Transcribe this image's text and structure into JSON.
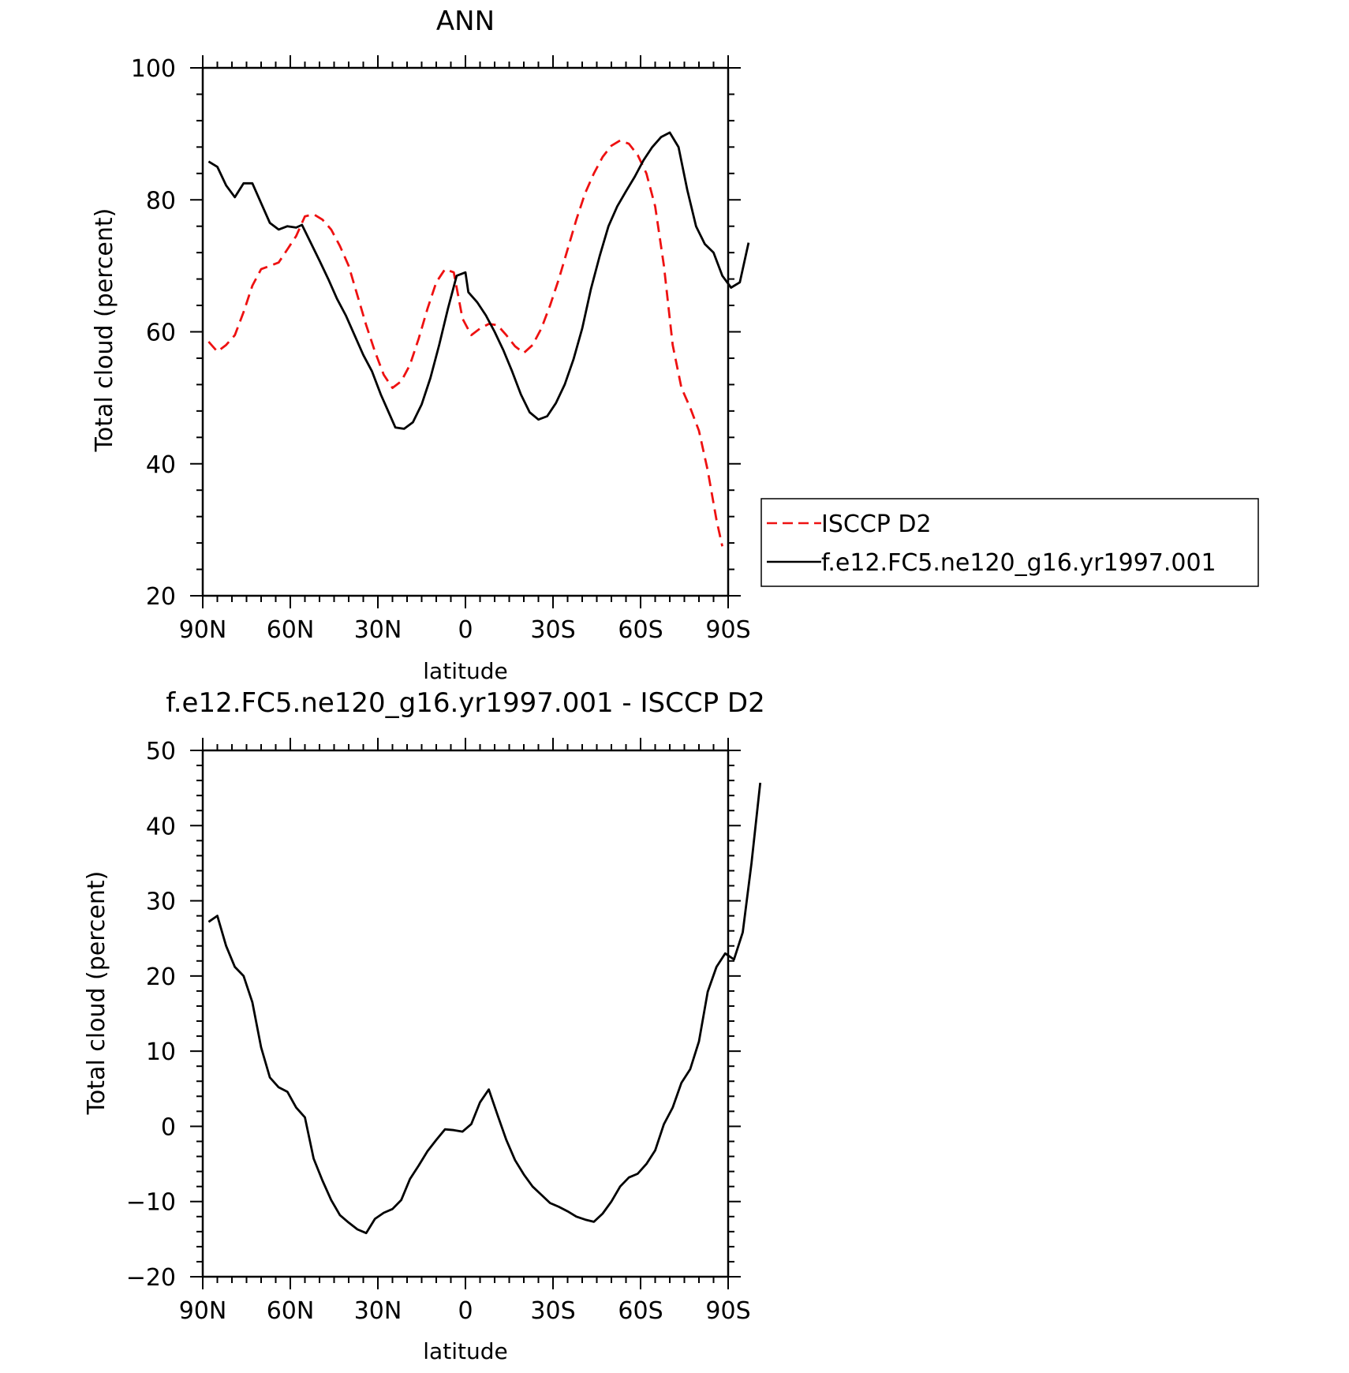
{
  "chart_data": [
    {
      "type": "line",
      "title": "ANN",
      "xlabel": "latitude",
      "ylabel": "Total cloud (percent)",
      "xlim": [
        90,
        -90
      ],
      "ylim": [
        20,
        100
      ],
      "x_ticks": [
        {
          "value": 90,
          "label": "90N"
        },
        {
          "value": 60,
          "label": "60N"
        },
        {
          "value": 30,
          "label": "30N"
        },
        {
          "value": 0,
          "label": "0"
        },
        {
          "value": -30,
          "label": "30S"
        },
        {
          "value": -60,
          "label": "60S"
        },
        {
          "value": -90,
          "label": "90S"
        }
      ],
      "y_ticks": [
        20,
        40,
        60,
        80,
        100
      ],
      "legend": "right",
      "series": [
        {
          "name": "ISCCP D2",
          "color": "#ee1111",
          "dash": "dashed",
          "points": [
            [
              88,
              58.5
            ],
            [
              85,
              57
            ],
            [
              82,
              58
            ],
            [
              79,
              59.5
            ],
            [
              76,
              63
            ],
            [
              73,
              67
            ],
            [
              70,
              69.5
            ],
            [
              67,
              70
            ],
            [
              64,
              70.5
            ],
            [
              61,
              72.5
            ],
            [
              58,
              74.5
            ],
            [
              55,
              77.5
            ],
            [
              52,
              77.8
            ],
            [
              49,
              77
            ],
            [
              46,
              75.5
            ],
            [
              43,
              73
            ],
            [
              40,
              70
            ],
            [
              37,
              65.5
            ],
            [
              34,
              61
            ],
            [
              31,
              57
            ],
            [
              28,
              53.5
            ],
            [
              25,
              51.5
            ],
            [
              22,
              52.5
            ],
            [
              19,
              55
            ],
            [
              16,
              59
            ],
            [
              13,
              63.5
            ],
            [
              10,
              67.5
            ],
            [
              7,
              69.5
            ],
            [
              4,
              69
            ],
            [
              1,
              62
            ],
            [
              -2,
              59.5
            ],
            [
              -5,
              60.5
            ],
            [
              -8,
              61.2
            ],
            [
              -11,
              61
            ],
            [
              -14,
              59.5
            ],
            [
              -17,
              57.8
            ],
            [
              -20,
              56.8
            ],
            [
              -23,
              58
            ],
            [
              -26,
              60.5
            ],
            [
              -29,
              64
            ],
            [
              -32,
              68
            ],
            [
              -35,
              72.5
            ],
            [
              -38,
              77
            ],
            [
              -41,
              81
            ],
            [
              -44,
              84
            ],
            [
              -47,
              86.5
            ],
            [
              -50,
              88.2
            ],
            [
              -53,
              89
            ],
            [
              -56,
              88.5
            ],
            [
              -59,
              86.8
            ],
            [
              -62,
              84
            ],
            [
              -65,
              79
            ],
            [
              -68,
              70
            ],
            [
              -71,
              58
            ],
            [
              -74,
              51.5
            ],
            [
              -77,
              48.5
            ],
            [
              -80,
              45
            ],
            [
              -83,
              39
            ],
            [
              -86,
              31.5
            ],
            [
              -88,
              27.5
            ]
          ]
        },
        {
          "name": "f.e12.FC5.ne120_g16.yr1997.001",
          "color": "#000000",
          "dash": "solid",
          "points": [
            [
              88,
              85.8
            ],
            [
              85,
              85
            ],
            [
              82,
              82.2
            ],
            [
              79,
              80.4
            ],
            [
              76,
              82.5
            ],
            [
              73,
              82.5
            ],
            [
              70,
              79.5
            ],
            [
              67,
              76.5
            ],
            [
              64,
              75.5
            ],
            [
              61,
              76
            ],
            [
              58,
              75.8
            ],
            [
              56,
              76.2
            ],
            [
              53,
              73.5
            ],
            [
              50,
              70.8
            ],
            [
              47,
              68
            ],
            [
              44,
              65
            ],
            [
              41,
              62.5
            ],
            [
              38,
              59.5
            ],
            [
              35,
              56.5
            ],
            [
              32,
              54
            ],
            [
              29,
              50.5
            ],
            [
              26,
              47.5
            ],
            [
              24,
              45.5
            ],
            [
              21,
              45.3
            ],
            [
              18,
              46.3
            ],
            [
              15,
              49
            ],
            [
              12,
              53
            ],
            [
              9,
              58
            ],
            [
              6,
              63.5
            ],
            [
              3,
              68.5
            ],
            [
              0,
              69
            ],
            [
              -1,
              66
            ],
            [
              -4,
              64.5
            ],
            [
              -7,
              62.5
            ],
            [
              -10,
              60
            ],
            [
              -13,
              57.2
            ],
            [
              -16,
              54
            ],
            [
              -19,
              50.5
            ],
            [
              -22,
              47.8
            ],
            [
              -25,
              46.7
            ],
            [
              -28,
              47.2
            ],
            [
              -31,
              49.2
            ],
            [
              -34,
              52
            ],
            [
              -37,
              55.8
            ],
            [
              -40,
              60.5
            ],
            [
              -43,
              66.5
            ],
            [
              -46,
              71.5
            ],
            [
              -49,
              76
            ],
            [
              -52,
              79
            ],
            [
              -55,
              81.3
            ],
            [
              -58,
              83.5
            ],
            [
              -61,
              86
            ],
            [
              -64,
              88
            ],
            [
              -67,
              89.5
            ],
            [
              -70,
              90.2
            ],
            [
              -73,
              88
            ],
            [
              -76,
              81.5
            ],
            [
              -79,
              76
            ],
            [
              -82,
              73.3
            ],
            [
              -85,
              72
            ],
            [
              -88,
              68.5
            ],
            [
              -91,
              66.7
            ],
            [
              -94,
              67.5
            ],
            [
              -97,
              73.5
            ]
          ]
        }
      ]
    },
    {
      "type": "line",
      "title": "f.e12.FC5.ne120_g16.yr1997.001 - ISCCP D2",
      "xlabel": "latitude",
      "ylabel": "Total cloud (percent)",
      "xlim": [
        90,
        -90
      ],
      "ylim": [
        -20,
        50
      ],
      "x_ticks": [
        {
          "value": 90,
          "label": "90N"
        },
        {
          "value": 60,
          "label": "60N"
        },
        {
          "value": 30,
          "label": "30N"
        },
        {
          "value": 0,
          "label": "0"
        },
        {
          "value": -30,
          "label": "30S"
        },
        {
          "value": -60,
          "label": "60S"
        },
        {
          "value": -90,
          "label": "90S"
        }
      ],
      "y_ticks": [
        -20,
        -10,
        0,
        10,
        20,
        30,
        40,
        50
      ],
      "series": [
        {
          "color": "#000000",
          "dash": "solid",
          "points": [
            [
              88,
              27.2
            ],
            [
              85,
              28
            ],
            [
              82,
              24
            ],
            [
              79,
              21.2
            ],
            [
              76,
              20
            ],
            [
              73,
              16.5
            ],
            [
              70,
              10.5
            ],
            [
              67,
              6.5
            ],
            [
              64,
              5.2
            ],
            [
              61,
              4.6
            ],
            [
              58,
              2.5
            ],
            [
              55,
              1.2
            ],
            [
              52,
              -4.3
            ],
            [
              49,
              -7.2
            ],
            [
              46,
              -9.8
            ],
            [
              43,
              -11.8
            ],
            [
              40,
              -12.8
            ],
            [
              37,
              -13.7
            ],
            [
              34,
              -14.2
            ],
            [
              31,
              -12.3
            ],
            [
              28,
              -11.5
            ],
            [
              25,
              -11
            ],
            [
              22,
              -9.8
            ],
            [
              19,
              -7
            ],
            [
              16,
              -5.2
            ],
            [
              13,
              -3.3
            ],
            [
              10,
              -1.8
            ],
            [
              7,
              -0.4
            ],
            [
              4,
              -0.5
            ],
            [
              1,
              -0.7
            ],
            [
              -2,
              0.3
            ],
            [
              -5,
              3.2
            ],
            [
              -8,
              4.9
            ],
            [
              -11,
              1.5
            ],
            [
              -14,
              -1.8
            ],
            [
              -17,
              -4.5
            ],
            [
              -20,
              -6.4
            ],
            [
              -23,
              -8
            ],
            [
              -26,
              -9.1
            ],
            [
              -29,
              -10.2
            ],
            [
              -32,
              -10.7
            ],
            [
              -35,
              -11.3
            ],
            [
              -38,
              -12
            ],
            [
              -41,
              -12.4
            ],
            [
              -44,
              -12.7
            ],
            [
              -47,
              -11.6
            ],
            [
              -50,
              -10
            ],
            [
              -53,
              -8
            ],
            [
              -56,
              -6.8
            ],
            [
              -59,
              -6.3
            ],
            [
              -62,
              -5
            ],
            [
              -65,
              -3.2
            ],
            [
              -68,
              0.3
            ],
            [
              -71,
              2.5
            ],
            [
              -74,
              5.8
            ],
            [
              -77,
              7.6
            ],
            [
              -80,
              11.3
            ],
            [
              -83,
              17.9
            ],
            [
              -86,
              21.2
            ],
            [
              -89,
              23
            ],
            [
              -92,
              22.2
            ],
            [
              -95,
              25.8
            ],
            [
              -98,
              35
            ],
            [
              -101,
              45.7
            ]
          ]
        }
      ]
    }
  ]
}
